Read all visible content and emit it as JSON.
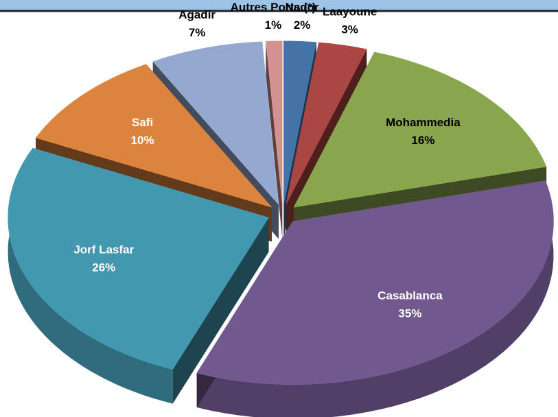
{
  "chart_data": {
    "type": "pie",
    "categories": [
      "Nador",
      "Laayoune",
      "Mohammedia",
      "Casablanca",
      "Jorf Lasfar",
      "Safi",
      "Agadir",
      "Autres Ports (*)"
    ],
    "values": [
      2,
      3,
      16,
      35,
      26,
      10,
      7,
      1
    ],
    "value_labels": [
      "2%",
      "3%",
      "16%",
      "35%",
      "26%",
      "10%",
      "7%",
      "1%"
    ],
    "colors": [
      "#4572a7",
      "#aa4643",
      "#89a54e",
      "#71588f",
      "#4198af",
      "#db843d",
      "#93a9cf",
      "#d19392"
    ],
    "label_colors": [
      "#000000",
      "#000000",
      "#000000",
      "#ffffff",
      "#ffffff",
      "#ffffff",
      "#000000",
      "#000000"
    ]
  }
}
